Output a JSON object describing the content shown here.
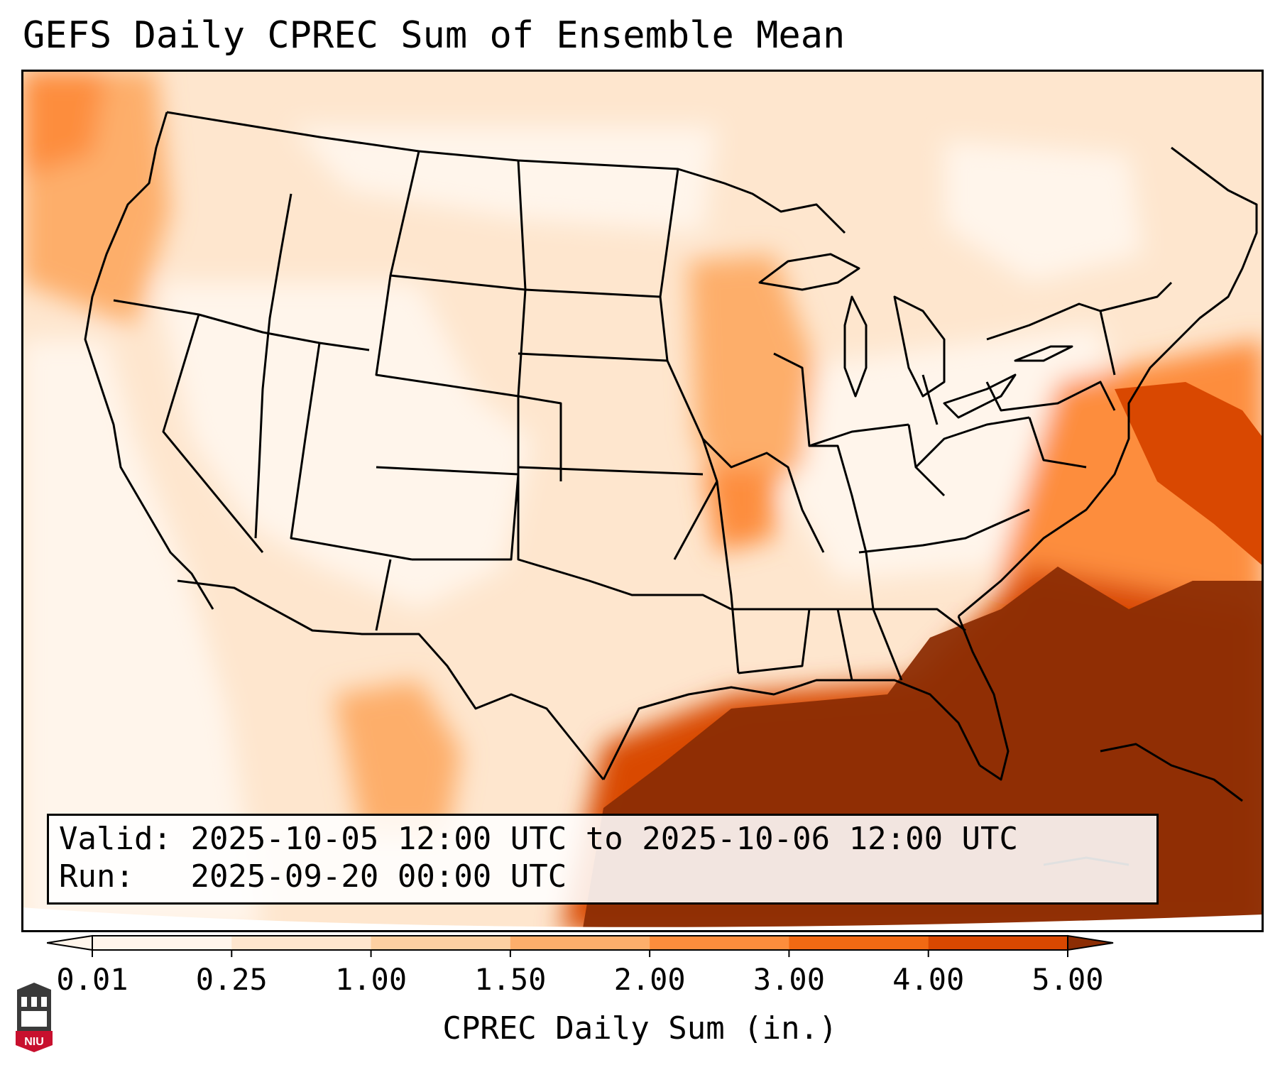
{
  "title": "GEFS Daily CPREC Sum of Ensemble Mean",
  "info": {
    "valid_label": "Valid:",
    "valid_value": "2025-10-05 12:00 UTC to 2025-10-06 12:00 UTC",
    "run_label": "Run:",
    "run_value": "2025-09-20 00:00 UTC"
  },
  "colorbar": {
    "label": "CPREC Daily Sum (in.)",
    "ticks": [
      "0.01",
      "0.25",
      "1.00",
      "1.50",
      "2.00",
      "3.00",
      "4.00",
      "5.00"
    ],
    "colors": [
      "#fff5eb",
      "#fee6ce",
      "#fdd0a2",
      "#fdae6b",
      "#fd8d3c",
      "#f16913",
      "#d94801",
      "#8c2d04"
    ],
    "extend": "both"
  },
  "logo": {
    "text": "NIU",
    "color": "#c8102e"
  },
  "map": {
    "projection": "lambert-conformal",
    "region": "CONUS",
    "colors": {
      "ocean_low": "#fff5eb",
      "land_base": "#fee6ce",
      "heavy": "#8c2d04",
      "boundary": "#000000"
    }
  }
}
